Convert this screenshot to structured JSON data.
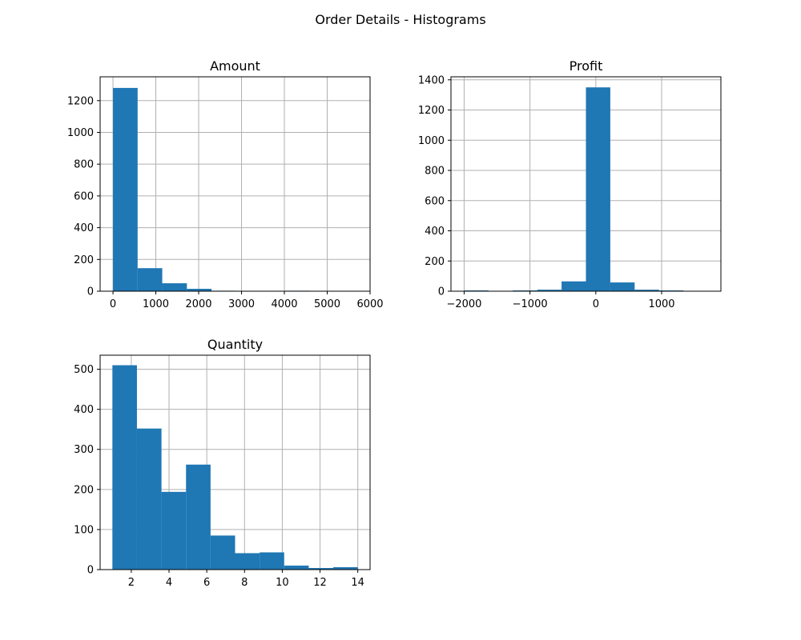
{
  "figure_title": "Order Details - Histograms",
  "colors": {
    "bar": "#1f77b4",
    "grid": "#b0b0b0",
    "axes": "#000000",
    "background": "#ffffff"
  },
  "chart_data": [
    {
      "type": "bar",
      "title": "Amount",
      "xlabel": "",
      "ylabel": "",
      "grid": true,
      "xlim": [
        -300,
        6000
      ],
      "ylim": [
        0,
        1350
      ],
      "xticks": [
        0,
        1000,
        2000,
        3000,
        4000,
        5000,
        6000
      ],
      "yticks": [
        0,
        200,
        400,
        600,
        800,
        1000,
        1200
      ],
      "bins": [
        {
          "x0": 0,
          "x1": 575,
          "count": 1280
        },
        {
          "x0": 575,
          "x1": 1150,
          "count": 145
        },
        {
          "x0": 1150,
          "x1": 1725,
          "count": 50
        },
        {
          "x0": 1725,
          "x1": 2300,
          "count": 15
        },
        {
          "x0": 2300,
          "x1": 2875,
          "count": 3
        },
        {
          "x0": 2875,
          "x1": 3450,
          "count": 2
        },
        {
          "x0": 3450,
          "x1": 4025,
          "count": 0
        },
        {
          "x0": 4025,
          "x1": 4600,
          "count": 3
        },
        {
          "x0": 4600,
          "x1": 5175,
          "count": 0
        },
        {
          "x0": 5175,
          "x1": 5750,
          "count": 1
        }
      ]
    },
    {
      "type": "bar",
      "title": "Profit",
      "xlabel": "",
      "ylabel": "",
      "grid": true,
      "xlim": [
        -2200,
        1900
      ],
      "ylim": [
        0,
        1420
      ],
      "xticks": [
        -2000,
        -1000,
        0,
        1000
      ],
      "yticks": [
        0,
        200,
        400,
        600,
        800,
        1000,
        1200,
        1400
      ],
      "bins": [
        {
          "x0": -2000,
          "x1": -1630,
          "count": 5
        },
        {
          "x0": -1630,
          "x1": -1260,
          "count": 0
        },
        {
          "x0": -1260,
          "x1": -890,
          "count": 5
        },
        {
          "x0": -890,
          "x1": -520,
          "count": 10
        },
        {
          "x0": -520,
          "x1": -150,
          "count": 65
        },
        {
          "x0": -150,
          "x1": 220,
          "count": 1350
        },
        {
          "x0": 220,
          "x1": 590,
          "count": 58
        },
        {
          "x0": 590,
          "x1": 960,
          "count": 10
        },
        {
          "x0": 960,
          "x1": 1330,
          "count": 5
        },
        {
          "x0": 1330,
          "x1": 1700,
          "count": 0
        }
      ]
    },
    {
      "type": "bar",
      "title": "Quantity",
      "xlabel": "",
      "ylabel": "",
      "grid": true,
      "xlim": [
        0.35,
        14.65
      ],
      "ylim": [
        0,
        535
      ],
      "xticks": [
        2,
        4,
        6,
        8,
        10,
        12,
        14
      ],
      "yticks": [
        0,
        100,
        200,
        300,
        400,
        500
      ],
      "bins": [
        {
          "x0": 1.0,
          "x1": 2.3,
          "count": 510
        },
        {
          "x0": 2.3,
          "x1": 3.6,
          "count": 352
        },
        {
          "x0": 3.6,
          "x1": 4.9,
          "count": 194
        },
        {
          "x0": 4.9,
          "x1": 6.2,
          "count": 262
        },
        {
          "x0": 6.2,
          "x1": 7.5,
          "count": 85
        },
        {
          "x0": 7.5,
          "x1": 8.8,
          "count": 41
        },
        {
          "x0": 8.8,
          "x1": 10.1,
          "count": 43
        },
        {
          "x0": 10.1,
          "x1": 11.4,
          "count": 10
        },
        {
          "x0": 11.4,
          "x1": 12.7,
          "count": 4
        },
        {
          "x0": 12.7,
          "x1": 14.0,
          "count": 6
        }
      ]
    }
  ]
}
